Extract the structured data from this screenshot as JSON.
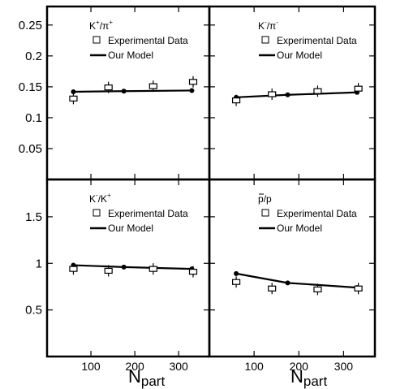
{
  "chart_data": [
    {
      "type": "line",
      "title": "K+/π+",
      "title_parts": {
        "a": "K",
        "a_sup": "+",
        "sep": "/",
        "b": "π",
        "b_sup": "+"
      },
      "xlabel": "N",
      "xlabel_sub": "part",
      "ylabel": "",
      "xlim": [
        0,
        370
      ],
      "ylim": [
        0,
        0.28
      ],
      "yticks": [
        "0.05",
        "0.1",
        "0.15",
        "0.2",
        "0.25"
      ],
      "xticks": [],
      "legend": [
        "Experimental Data",
        "Our Model"
      ],
      "series": [
        {
          "name": "Experimental Data",
          "style": "open-square-errorbar",
          "x": [
            60,
            140,
            242,
            333
          ],
          "y": [
            0.131,
            0.149,
            0.151,
            0.158
          ]
        },
        {
          "name": "Our Model",
          "style": "line-dot",
          "x": [
            60,
            175,
            330
          ],
          "y": [
            0.142,
            0.143,
            0.144
          ]
        }
      ]
    },
    {
      "type": "line",
      "title": "K-/π-",
      "title_parts": {
        "a": "K",
        "a_sup": "-",
        "sep": "/",
        "b": "π",
        "b_sup": "-"
      },
      "xlabel": "N",
      "xlabel_sub": "part",
      "ylabel": "",
      "xlim": [
        0,
        370
      ],
      "ylim": [
        0,
        0.28
      ],
      "yticks": [],
      "xticks": [],
      "legend": [
        "Experimental Data",
        "Our Model"
      ],
      "series": [
        {
          "name": "Experimental Data",
          "style": "open-square-errorbar",
          "x": [
            60,
            140,
            242,
            333
          ],
          "y": [
            0.128,
            0.138,
            0.143,
            0.147
          ]
        },
        {
          "name": "Our Model",
          "style": "line-dot",
          "x": [
            60,
            175,
            330
          ],
          "y": [
            0.133,
            0.137,
            0.141
          ]
        }
      ]
    },
    {
      "type": "line",
      "title": "K-/K+",
      "title_parts": {
        "a": "K",
        "a_sup": "-",
        "sep": "/",
        "b": "K",
        "b_sup": "+"
      },
      "xlabel": "N",
      "xlabel_sub": "part",
      "ylabel": "",
      "xlim": [
        0,
        370
      ],
      "ylim": [
        0,
        1.9
      ],
      "yticks": [
        "0.5",
        "1",
        "1.5"
      ],
      "xticks": [
        "100",
        "200",
        "300"
      ],
      "legend": [
        "Experimental Data",
        "Our Model"
      ],
      "series": [
        {
          "name": "Experimental Data",
          "style": "open-square-errorbar",
          "x": [
            60,
            140,
            242,
            333
          ],
          "y": [
            0.94,
            0.92,
            0.94,
            0.91
          ]
        },
        {
          "name": "Our Model",
          "style": "line-dot",
          "x": [
            60,
            175,
            330
          ],
          "y": [
            0.98,
            0.96,
            0.94
          ]
        }
      ]
    },
    {
      "type": "line",
      "title": "p̄/p",
      "title_parts": {
        "a": "p",
        "a_bar": true,
        "sep": "/",
        "b": "p"
      },
      "xlabel": "N",
      "xlabel_sub": "part",
      "ylabel": "",
      "xlim": [
        0,
        370
      ],
      "ylim": [
        0,
        1.9
      ],
      "yticks": [],
      "xticks": [
        "100",
        "200",
        "300"
      ],
      "legend": [
        "Experimental Data",
        "Our Model"
      ],
      "series": [
        {
          "name": "Experimental Data",
          "style": "open-square-errorbar",
          "x": [
            60,
            140,
            242,
            333
          ],
          "y": [
            0.8,
            0.73,
            0.72,
            0.73
          ]
        },
        {
          "name": "Our Model",
          "style": "line-dot",
          "x": [
            60,
            175,
            330
          ],
          "y": [
            0.89,
            0.79,
            0.74
          ]
        }
      ]
    }
  ]
}
